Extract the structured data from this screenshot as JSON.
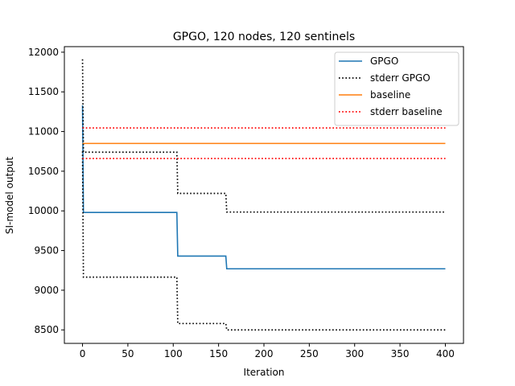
{
  "chart_data": {
    "type": "line",
    "title": "GPGO, 120 nodes, 120 sentinels",
    "xlabel": "Iteration",
    "ylabel": "SI-model output",
    "xlim": [
      -20,
      420
    ],
    "ylim": [
      8330,
      12070
    ],
    "xticks": [
      0,
      50,
      100,
      150,
      200,
      250,
      300,
      350,
      400
    ],
    "yticks": [
      8500,
      9000,
      9500,
      10000,
      10500,
      11000,
      11500,
      12000
    ],
    "grid": false,
    "legend_position": "top-right",
    "series": [
      {
        "name": "GPGO",
        "color": "#1f77b4",
        "style": "solid",
        "x": [
          0,
          1,
          104,
          105,
          158,
          159,
          400
        ],
        "y": [
          11330,
          9980,
          9980,
          9430,
          9430,
          9270,
          9270
        ]
      },
      {
        "name": "stderr GPGO",
        "color": "#000000",
        "style": "dotted",
        "x": [
          0,
          1,
          104,
          105,
          158,
          159,
          400
        ],
        "y": [
          11910,
          10740,
          10740,
          10220,
          10220,
          9985,
          9985
        ]
      },
      {
        "name": "",
        "color": "#000000",
        "style": "dotted",
        "x": [
          0,
          1,
          104,
          105,
          158,
          159,
          400
        ],
        "y": [
          10750,
          9165,
          9165,
          8580,
          8580,
          8500,
          8500
        ]
      },
      {
        "name": "baseline",
        "color": "#ff7f0e",
        "style": "solid",
        "x": [
          0,
          400
        ],
        "y": [
          10850,
          10850
        ]
      },
      {
        "name": "stderr baseline",
        "color": "#ff0000",
        "style": "dotted",
        "x": [
          0,
          400
        ],
        "y": [
          11045,
          11045
        ]
      },
      {
        "name": "",
        "color": "#ff0000",
        "style": "dotted",
        "x": [
          0,
          400
        ],
        "y": [
          10660,
          10660
        ]
      }
    ]
  }
}
